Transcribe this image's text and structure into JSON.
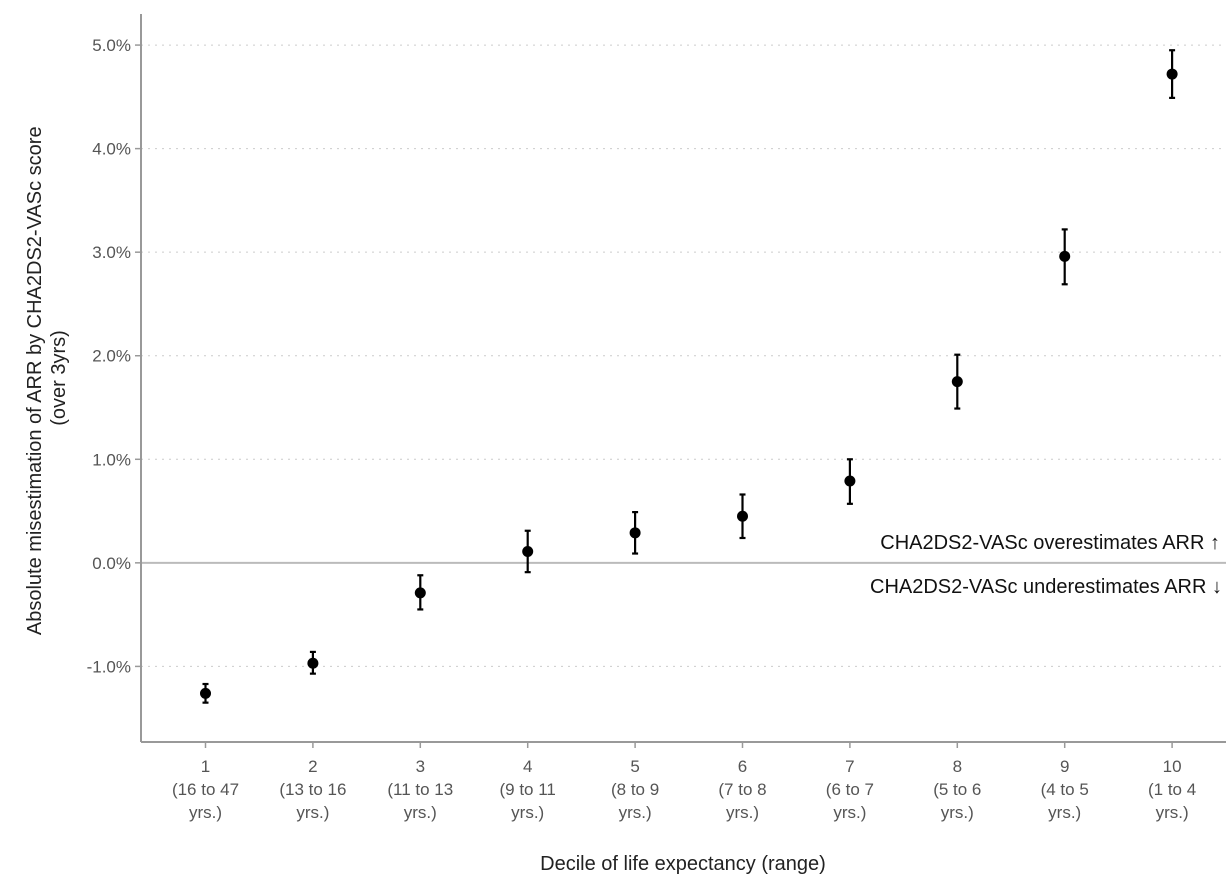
{
  "chart_data": {
    "type": "scatter",
    "title": "",
    "xlabel": "Decile of life expectancy (range)",
    "ylabel_lines": [
      "Absolute misestimation of ARR by CHA2DS2-VASc score",
      "(over 3yrs)"
    ],
    "categories": [
      {
        "decile": "1",
        "range_lines": [
          "(16 to 47",
          "yrs.)"
        ]
      },
      {
        "decile": "2",
        "range_lines": [
          "(13 to 16",
          "yrs.)"
        ]
      },
      {
        "decile": "3",
        "range_lines": [
          "(11 to 13",
          "yrs.)"
        ]
      },
      {
        "decile": "4",
        "range_lines": [
          "(9 to 11",
          "yrs.)"
        ]
      },
      {
        "decile": "5",
        "range_lines": [
          "(8 to 9",
          "yrs.)"
        ]
      },
      {
        "decile": "6",
        "range_lines": [
          "(7 to 8",
          "yrs.)"
        ]
      },
      {
        "decile": "7",
        "range_lines": [
          "(6 to 7",
          "yrs.)"
        ]
      },
      {
        "decile": "8",
        "range_lines": [
          "(5 to 6",
          "yrs.)"
        ]
      },
      {
        "decile": "9",
        "range_lines": [
          "(4 to 5",
          "yrs.)"
        ]
      },
      {
        "decile": "10",
        "range_lines": [
          "(1 to 4",
          "yrs.)"
        ]
      }
    ],
    "values": [
      -1.26,
      -0.97,
      -0.29,
      0.11,
      0.29,
      0.45,
      0.79,
      1.75,
      2.96,
      4.72
    ],
    "ci_lower": [
      -1.35,
      -1.07,
      -0.45,
      -0.09,
      0.09,
      0.24,
      0.57,
      1.49,
      2.69,
      4.49
    ],
    "ci_upper": [
      -1.17,
      -0.86,
      -0.12,
      0.31,
      0.49,
      0.66,
      1.0,
      2.01,
      3.22,
      4.95
    ],
    "y_ticks": [
      -1.0,
      0.0,
      1.0,
      2.0,
      3.0,
      4.0,
      5.0
    ],
    "y_tick_labels": [
      "-1.0%",
      "0.0%",
      "1.0%",
      "2.0%",
      "3.0%",
      "4.0%",
      "5.0%"
    ],
    "ylim": [
      -1.73,
      5.3
    ],
    "reference_line": 0,
    "annotations": {
      "over": "CHA2DS2-VASc overestimates ARR ↑",
      "under": "CHA2DS2-VASc underestimates ARR ↓"
    },
    "grid": "horizontal dotted",
    "legend": "none",
    "colors": {
      "points": "#000000",
      "grid": "#cccccc",
      "reference": "#bbbbbb",
      "axis": "#999999"
    }
  }
}
